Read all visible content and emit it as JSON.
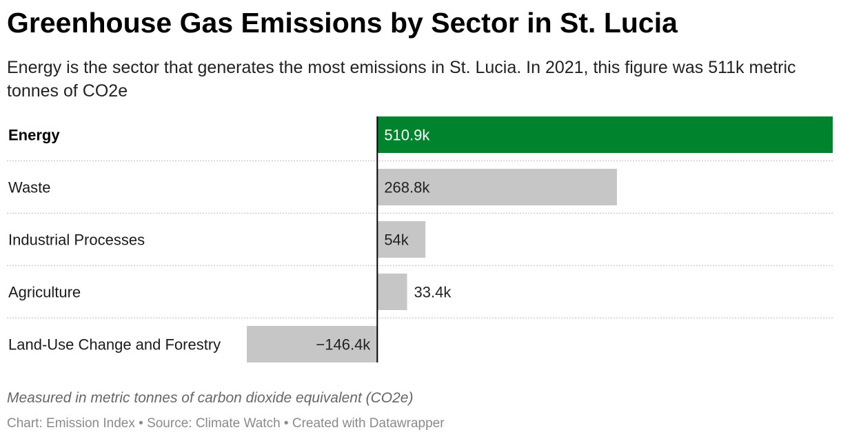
{
  "title": "Greenhouse Gas Emissions by Sector in St. Lucia",
  "subtitle": "Energy is the sector that generates the most emissions in St. Lucia. In 2021, this figure was 511k metric tonnes of CO2e",
  "note": "Measured in metric tonnes of carbon dioxide equivalent (CO2e)",
  "footer": "Chart: Emission Index • Source: Climate Watch • Created with Datawrapper",
  "colors": {
    "highlight": "#00832d",
    "default_bar": "#c6c6c6",
    "axis": "#000000",
    "row_divider": "#cfcfcf"
  },
  "chart_data": {
    "type": "bar",
    "orientation": "horizontal",
    "categories": [
      "Energy",
      "Waste",
      "Industrial Processes",
      "Agriculture",
      "Land-Use Change and Forestry"
    ],
    "values": [
      510900,
      268800,
      54000,
      33400,
      -146400
    ],
    "value_labels": [
      "510.9k",
      "268.8k",
      "54k",
      "33.4k",
      "−146.4k"
    ],
    "highlighted_category": "Energy",
    "xlim": [
      -146400,
      510900
    ],
    "title": "Greenhouse Gas Emissions by Sector in St. Lucia",
    "xlabel": "",
    "ylabel": "",
    "grid": false,
    "legend": "none"
  }
}
